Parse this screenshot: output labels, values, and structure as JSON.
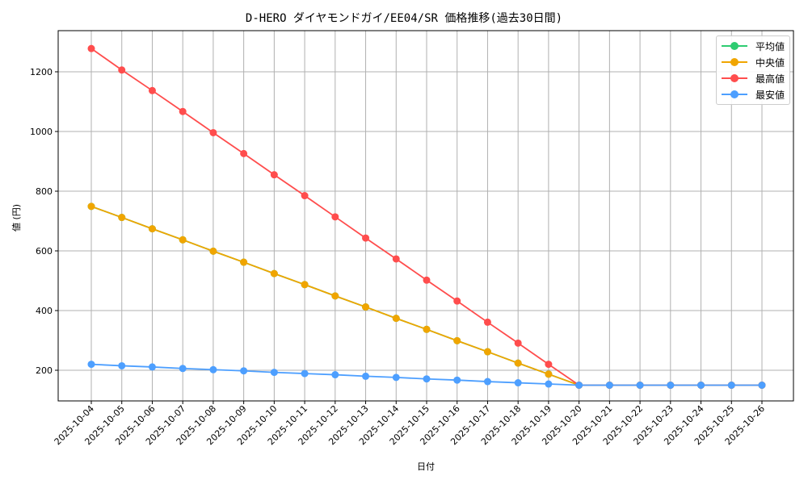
{
  "chart_data": {
    "type": "line",
    "title": "D-HERO ダイヤモンドガイ/EE04/SR 価格推移(過去30日間)",
    "xlabel": "日付",
    "ylabel": "値 (円)",
    "ylim": [
      95,
      1335
    ],
    "yticks": [
      200,
      400,
      600,
      800,
      1000,
      1200
    ],
    "grid": true,
    "legend_position": "upper right",
    "categories": [
      "2025-10-04",
      "2025-10-05",
      "2025-10-06",
      "2025-10-07",
      "2025-10-08",
      "2025-10-09",
      "2025-10-10",
      "2025-10-11",
      "2025-10-12",
      "2025-10-13",
      "2025-10-14",
      "2025-10-15",
      "2025-10-16",
      "2025-10-17",
      "2025-10-18",
      "2025-10-19",
      "2025-10-20",
      "2025-10-21",
      "2025-10-22",
      "2025-10-23",
      "2025-10-24",
      "2025-10-25",
      "2025-10-26"
    ],
    "series": [
      {
        "name": "平均値",
        "color": "#2ecc71",
        "values": [
          749,
          712,
          674,
          637,
          599,
          562,
          524,
          487,
          449,
          412,
          374,
          337,
          299,
          262,
          224,
          187,
          150,
          150,
          150,
          150,
          150,
          150,
          150
        ]
      },
      {
        "name": "中央値",
        "color": "#f0a500",
        "values": [
          749,
          712,
          674,
          637,
          599,
          562,
          524,
          487,
          449,
          412,
          374,
          337,
          299,
          262,
          224,
          187,
          150,
          150,
          150,
          150,
          150,
          150,
          150
        ]
      },
      {
        "name": "最高値",
        "color": "#ff4d4d",
        "values": [
          1278,
          1206,
          1137,
          1067,
          996,
          926,
          855,
          785,
          714,
          643,
          573,
          502,
          432,
          361,
          291,
          220,
          150,
          150,
          150,
          150,
          150,
          150,
          150
        ]
      },
      {
        "name": "最安値",
        "color": "#4d9fff",
        "values": [
          220,
          215,
          211,
          206,
          202,
          198,
          193,
          189,
          185,
          180,
          176,
          171,
          167,
          162,
          158,
          154,
          150,
          150,
          150,
          150,
          150,
          150,
          150
        ]
      }
    ]
  }
}
